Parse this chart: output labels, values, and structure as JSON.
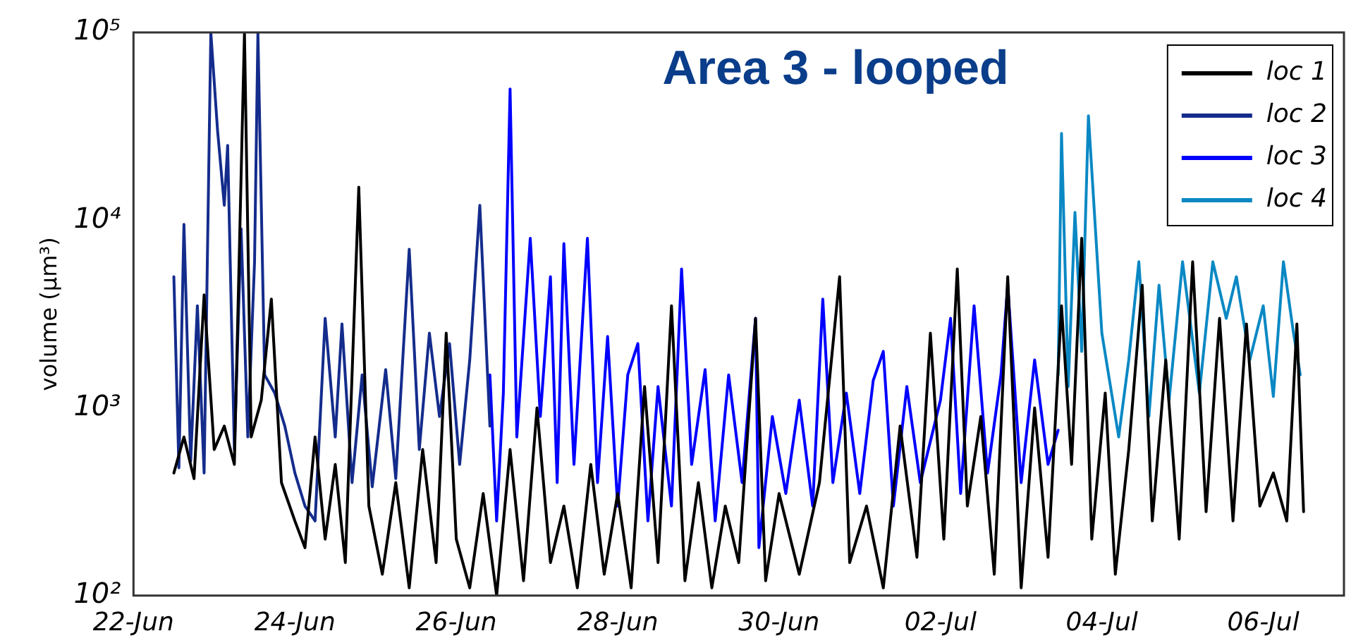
{
  "chart_data": {
    "type": "line",
    "title": "Area 3 - looped",
    "ylabel": "volume (μm³)",
    "xlim": [
      "--06-22",
      "--07-07"
    ],
    "xticks": [
      {
        "value": "--06-22",
        "label": "22-Jun"
      },
      {
        "value": "--06-24",
        "label": "24-Jun"
      },
      {
        "value": "--06-26",
        "label": "26-Jun"
      },
      {
        "value": "--06-28",
        "label": "28-Jun"
      },
      {
        "value": "--06-30",
        "label": "30-Jun"
      },
      {
        "value": "--07-02",
        "label": "02-Jul"
      },
      {
        "value": "--07-04",
        "label": "04-Jul"
      },
      {
        "value": "--07-06",
        "label": "06-Jul"
      }
    ],
    "ylim": [
      100,
      100000
    ],
    "yticks": [
      {
        "value": 100,
        "label": "10²"
      },
      {
        "value": 1000,
        "label": "10³"
      },
      {
        "value": 10000,
        "label": "10⁴"
      },
      {
        "value": 100000,
        "label": "10⁵"
      }
    ],
    "log": "y",
    "grid": false,
    "legend": "top right",
    "marker": "none",
    "line_style": "solid",
    "series": [
      {
        "name": "loc 1",
        "color": "#000000",
        "x": [
          "--06-22T12:00",
          "--06-22T15:00",
          "--06-22T18:00",
          "--06-22T21:00",
          "--06-23T00:00",
          "--06-23T03:00",
          "--06-23T06:00",
          "--06-23T09:00",
          "--06-23T11:00",
          "--06-23T14:00",
          "--06-23T17:00",
          "--06-23T20:00",
          "--06-24T00:00",
          "--06-24T03:00",
          "--06-24T06:00",
          "--06-24T09:00",
          "--06-24T12:00",
          "--06-24T15:00",
          "--06-24T19:00",
          "--06-24T22:00",
          "--06-25T02:00",
          "--06-25T06:00",
          "--06-25T10:00",
          "--06-25T14:00",
          "--06-25T18:00",
          "--06-25T21:00",
          "--06-26T00:00",
          "--06-26T04:00",
          "--06-26T08:00",
          "--06-26T12:00",
          "--06-26T16:00",
          "--06-26T20:00",
          "--06-27T00:00",
          "--06-27T04:00",
          "--06-27T08:00",
          "--06-27T12:00",
          "--06-27T16:00",
          "--06-27T20:00",
          "--06-28T00:00",
          "--06-28T04:00",
          "--06-28T08:00",
          "--06-28T12:00",
          "--06-28T16:00",
          "--06-28T20:00",
          "--06-29T00:00",
          "--06-29T04:00",
          "--06-29T08:00",
          "--06-29T12:00",
          "--06-29T17:00",
          "--06-29T20:00",
          "--06-30T00:00",
          "--06-30T06:00",
          "--06-30T12:00",
          "--06-30T18:00",
          "--06-30T21:00",
          "--07-01T02:00",
          "--07-01T07:00",
          "--07-01T12:00",
          "--07-01T17:00",
          "--07-01T21:00",
          "--07-02T01:00",
          "--07-02T05:00",
          "--07-02T08:00",
          "--07-02T12:00",
          "--07-02T16:00",
          "--07-02T20:00",
          "--07-03T00:00",
          "--07-03T04:00",
          "--07-03T08:00",
          "--07-03T12:00",
          "--07-03T15:00",
          "--07-03T18:00",
          "--07-03T21:00",
          "--07-04T01:00",
          "--07-04T04:00",
          "--07-04T08:00",
          "--07-04T12:00",
          "--07-04T15:00",
          "--07-04T19:00",
          "--07-04T23:00",
          "--07-05T03:00",
          "--07-05T07:00",
          "--07-05T11:00",
          "--07-05T15:00",
          "--07-05T19:00",
          "--07-05T23:00",
          "--07-06T03:00",
          "--07-06T07:00",
          "--07-06T10:00",
          "--07-06T12:00"
        ],
        "values": [
          450,
          700,
          420,
          4000,
          600,
          800,
          500,
          100000,
          700,
          1100,
          3800,
          400,
          250,
          180,
          700,
          200,
          500,
          150,
          15000,
          300,
          130,
          400,
          110,
          600,
          150,
          2500,
          200,
          110,
          350,
          100,
          600,
          120,
          1000,
          150,
          300,
          110,
          500,
          130,
          350,
          110,
          1300,
          150,
          3500,
          120,
          400,
          110,
          300,
          150,
          3000,
          120,
          350,
          130,
          400,
          5000,
          150,
          300,
          110,
          800,
          160,
          2500,
          200,
          5500,
          300,
          900,
          130,
          5000,
          110,
          1000,
          160,
          3500,
          500,
          8000,
          200,
          1200,
          130,
          600,
          4500,
          250,
          1800,
          200,
          6000,
          280,
          3000,
          250,
          2800,
          300,
          450,
          250,
          2800,
          280
        ]
      },
      {
        "name": "loc 2",
        "color": "#142c8c",
        "x": [
          "--06-22T12:00",
          "--06-22T13:30",
          "--06-22T15:00",
          "--06-22T17:00",
          "--06-22T19:00",
          "--06-22T21:00",
          "--06-22T23:00",
          "--06-23T01:00",
          "--06-23T03:00",
          "--06-23T04:00",
          "--06-23T06:00",
          "--06-23T08:00",
          "--06-23T10:00",
          "--06-23T12:00",
          "--06-23T13:00",
          "--06-23T15:00",
          "--06-23T18:00",
          "--06-23T21:00",
          "--06-24T00:00",
          "--06-24T03:00",
          "--06-24T06:00",
          "--06-24T09:00",
          "--06-24T12:00",
          "--06-24T14:00",
          "--06-24T17:00",
          "--06-24T20:00",
          "--06-24T23:00",
          "--06-25T03:00",
          "--06-25T06:00",
          "--06-25T10:00",
          "--06-25T13:00",
          "--06-25T16:00",
          "--06-25T19:00",
          "--06-25T22:00",
          "--06-26T01:00",
          "--06-26T04:00",
          "--06-26T07:00",
          "--06-26T10:00"
        ],
        "values": [
          5000,
          480,
          9500,
          520,
          3500,
          450,
          100000,
          30000,
          12000,
          25000,
          600,
          9000,
          700,
          6000,
          100000,
          1500,
          1200,
          800,
          450,
          300,
          250,
          3000,
          700,
          2800,
          400,
          1500,
          380,
          1600,
          420,
          7000,
          600,
          2500,
          900,
          2200,
          500,
          1800,
          12000,
          800
        ]
      },
      {
        "name": "loc 3",
        "color": "#0000ff",
        "x": [
          "--06-26T10:00",
          "--06-26T12:00",
          "--06-26T14:00",
          "--06-26T16:00",
          "--06-26T18:00",
          "--06-26T22:00",
          "--06-27T01:00",
          "--06-27T04:00",
          "--06-27T06:00",
          "--06-27T08:00",
          "--06-27T11:00",
          "--06-27T15:00",
          "--06-27T18:00",
          "--06-27T21:00",
          "--06-28T00:00",
          "--06-28T03:00",
          "--06-28T06:00",
          "--06-28T09:00",
          "--06-28T12:00",
          "--06-28T16:00",
          "--06-28T19:00",
          "--06-28T22:00",
          "--06-29T02:00",
          "--06-29T05:00",
          "--06-29T09:00",
          "--06-29T13:00",
          "--06-29T17:00",
          "--06-29T18:00",
          "--06-29T22:00",
          "--06-30T02:00",
          "--06-30T06:00",
          "--06-30T10:00",
          "--06-30T13:00",
          "--06-30T16:00",
          "--06-30T20:00",
          "--07-01T00:00",
          "--07-01T04:00",
          "--07-01T07:00",
          "--07-01T10:00",
          "--07-01T14:00",
          "--07-01T18:00",
          "--07-02T00:00",
          "--07-02T03:00",
          "--07-02T06:00",
          "--07-02T10:00",
          "--07-02T14:00",
          "--07-02T18:00",
          "--07-02T20:00",
          "--07-03T00:00",
          "--07-03T04:00",
          "--07-03T08:00",
          "--07-03T11:00"
        ],
        "values": [
          1500,
          250,
          1200,
          50000,
          700,
          8000,
          900,
          5000,
          400,
          7500,
          500,
          8000,
          400,
          2400,
          300,
          1500,
          2200,
          250,
          1300,
          300,
          5500,
          500,
          1600,
          250,
          1500,
          400,
          3000,
          180,
          900,
          350,
          1100,
          300,
          3800,
          400,
          1200,
          350,
          1400,
          2000,
          300,
          1300,
          400,
          1100,
          3000,
          350,
          3500,
          450,
          1500,
          4500,
          400,
          1800,
          500,
          760
        ]
      },
      {
        "name": "loc 4",
        "color": "#0a88c4",
        "x": [
          "--07-03T11:00",
          "--07-03T12:00",
          "--07-03T14:00",
          "--07-03T16:00",
          "--07-03T18:00",
          "--07-03T20:00",
          "--07-04T00:00",
          "--07-04T05:00",
          "--07-04T08:00",
          "--07-04T11:00",
          "--07-04T14:00",
          "--07-04T17:00",
          "--07-04T20:00",
          "--07-05T00:00",
          "--07-05T05:00",
          "--07-05T09:00",
          "--07-05T13:00",
          "--07-05T16:00",
          "--07-05T20:00",
          "--07-06T00:00",
          "--07-06T03:00",
          "--07-06T06:00",
          "--07-06T09:00",
          "--07-06T11:00"
        ],
        "values": [
          1500,
          29000,
          1300,
          11000,
          2000,
          36000,
          2500,
          700,
          1800,
          6000,
          900,
          4500,
          1100,
          6000,
          1200,
          6000,
          3000,
          5000,
          1800,
          3500,
          1150,
          6000,
          2500,
          1500
        ]
      }
    ]
  }
}
